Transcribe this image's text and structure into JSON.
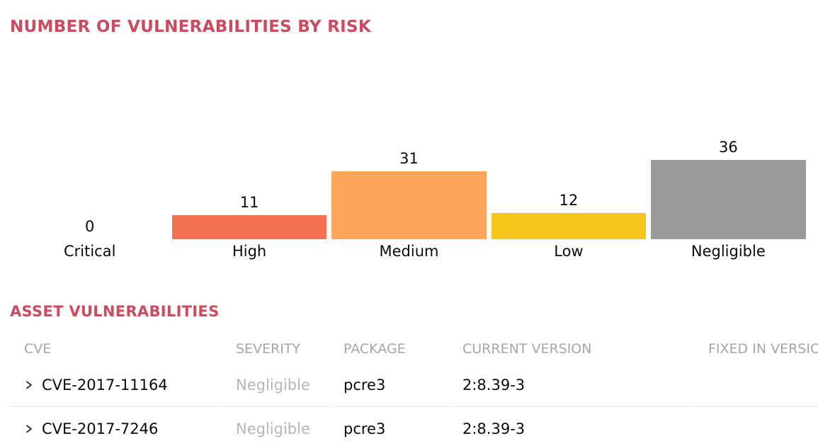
{
  "colors": {
    "accent": "#cd4b5f",
    "bar_high": "#f47154",
    "bar_medium": "#fba65a",
    "bar_low": "#f6c61b",
    "bar_negligible": "#9a9a9a",
    "muted_text": "#a6a6a6",
    "severity_text": "#b6b6b6",
    "row_border": "#e3e3e3"
  },
  "chart": {
    "title": "NUMBER OF VULNERABILITIES BY RISK"
  },
  "chart_data": {
    "type": "bar",
    "title": "NUMBER OF VULNERABILITIES BY RISK",
    "categories": [
      "Critical",
      "High",
      "Medium",
      "Low",
      "Negligible"
    ],
    "values": [
      0,
      11,
      31,
      12,
      36
    ],
    "colors": [
      null,
      "#f47154",
      "#fba65a",
      "#f6c61b",
      "#9a9a9a"
    ],
    "value_labels": true,
    "xlabel": "",
    "ylabel": "",
    "ylim": [
      0,
      36
    ],
    "grid": false,
    "legend": false
  },
  "table": {
    "title": "ASSET VULNERABILITIES",
    "columns": [
      "CVE",
      "SEVERITY",
      "PACKAGE",
      "CURRENT VERSION",
      "FIXED IN VERSION"
    ],
    "column_keys": [
      "cve",
      "severity",
      "package",
      "current_version",
      "fixed_in_version"
    ],
    "rows": [
      {
        "cve": "CVE-2017-11164",
        "severity": "Negligible",
        "package": "pcre3",
        "current_version": "2:8.39-3",
        "fixed_in_version": ""
      },
      {
        "cve": "CVE-2017-7246",
        "severity": "Negligible",
        "package": "pcre3",
        "current_version": "2:8.39-3",
        "fixed_in_version": ""
      }
    ]
  }
}
